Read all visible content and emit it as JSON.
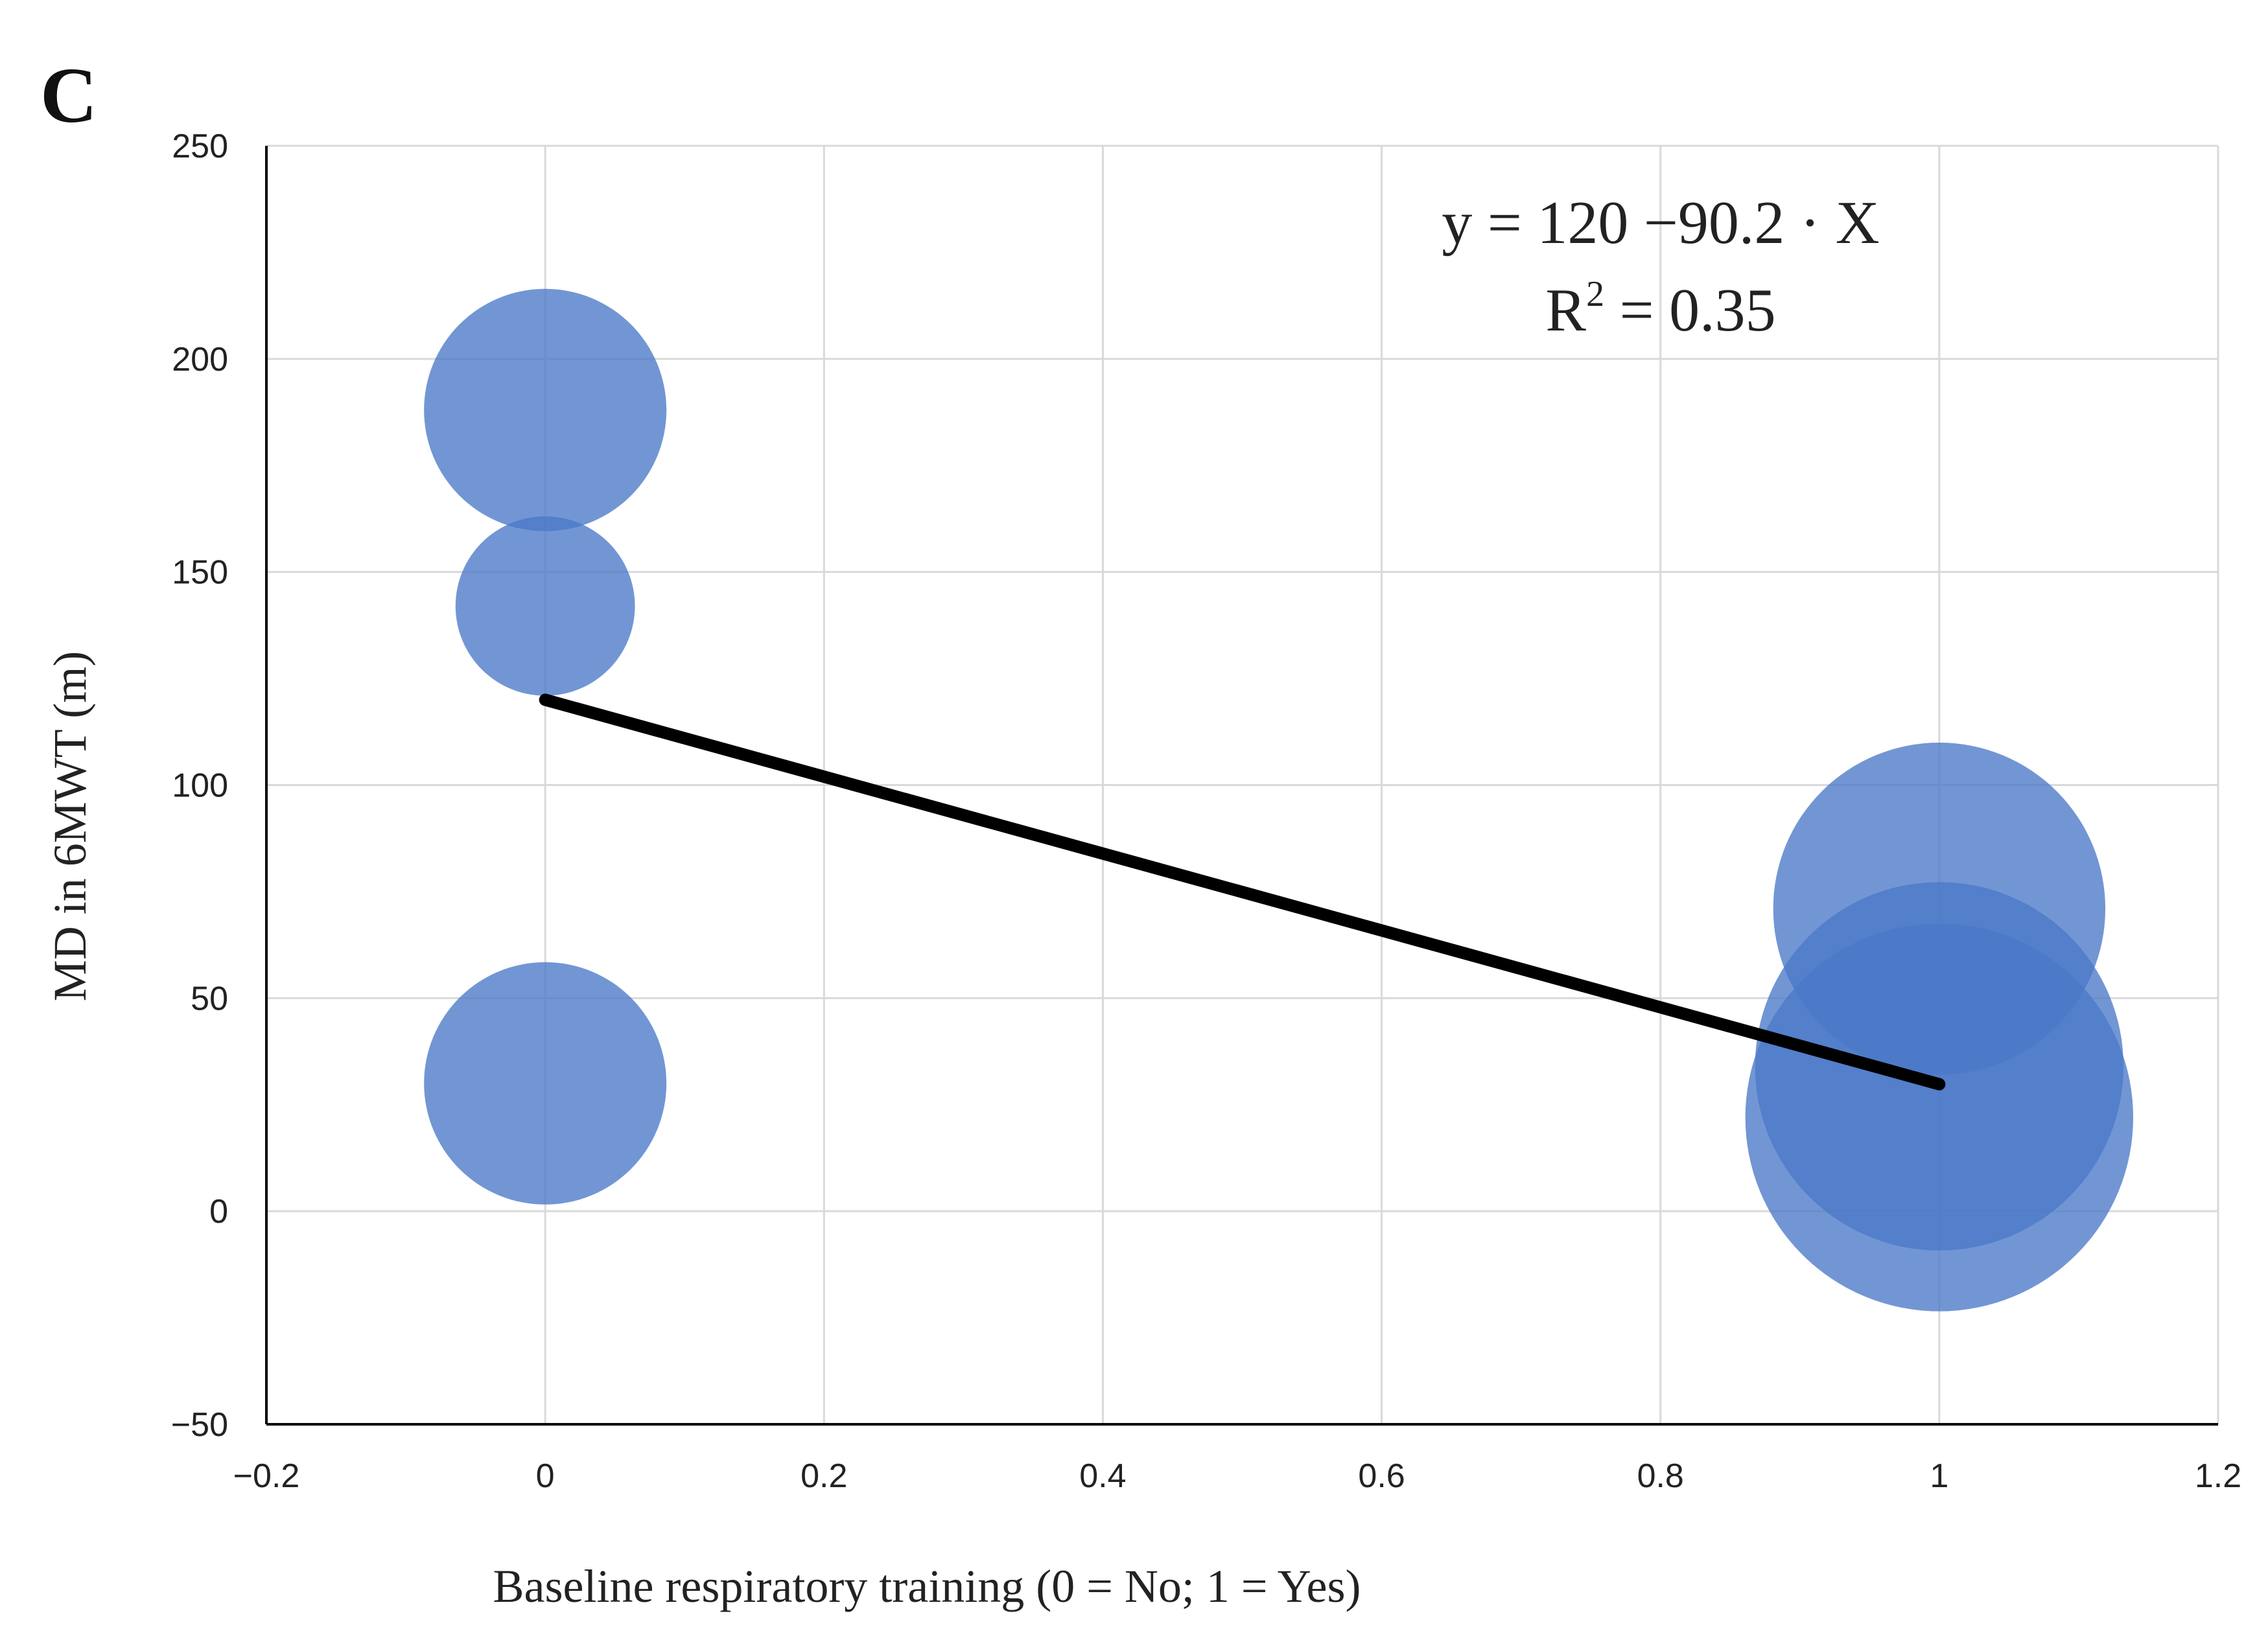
{
  "panel_label": "C",
  "chart_data": {
    "type": "scatter",
    "style": "bubble",
    "title": "",
    "xlabel": "Baseline respiratory training (0 = No; 1 = Yes)",
    "ylabel": "MD in 6MWT (m)",
    "xlim": [
      -0.2,
      1.2
    ],
    "ylim": [
      -50,
      250
    ],
    "x_ticks": [
      -0.2,
      0,
      0.2,
      0.4,
      0.6,
      0.8,
      1,
      1.2
    ],
    "y_ticks": [
      -50,
      0,
      50,
      100,
      150,
      200,
      250
    ],
    "x_tick_labels": [
      "−0.2",
      "0",
      "0.2",
      "0.4",
      "0.6",
      "0.8",
      "1",
      "1.2"
    ],
    "y_tick_labels": [
      "−50",
      "0",
      "50",
      "100",
      "150",
      "200",
      "250"
    ],
    "grid": true,
    "legend": "none",
    "bubble_color": "#4a78c8",
    "bubble_opacity": 0.78,
    "points": [
      {
        "x": 0,
        "y": 188,
        "weight": 1.0
      },
      {
        "x": 0,
        "y": 142,
        "weight": 0.74
      },
      {
        "x": 0,
        "y": 30,
        "weight": 1.0
      },
      {
        "x": 1,
        "y": 71,
        "weight": 1.37
      },
      {
        "x": 1,
        "y": 34,
        "weight": 1.52
      },
      {
        "x": 1,
        "y": 22,
        "weight": 1.6
      }
    ],
    "regression": {
      "intercept": 120,
      "slope": -90.2,
      "x_range": [
        0,
        1
      ],
      "color": "#000000"
    },
    "annotations": {
      "equation": "y = 120 −90.2 · X",
      "r_squared_prefix": "R",
      "r_squared_exponent": "2",
      "r_squared_value": " = 0.35"
    }
  }
}
